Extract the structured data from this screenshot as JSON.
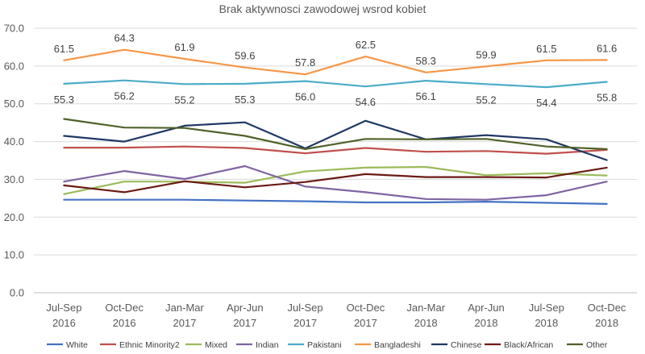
{
  "chart_data": {
    "type": "line",
    "title": "Brak aktywnosci zawodowej wsrod kobiet",
    "xlabel": "",
    "ylabel": "",
    "ylim": [
      0,
      70
    ],
    "yticks": [
      "0.0",
      "10.0",
      "20.0",
      "30.0",
      "40.0",
      "50.0",
      "60.0",
      "70.0"
    ],
    "grid": true,
    "legend_position": "bottom",
    "categories": [
      [
        "Jul-Sep",
        "2016"
      ],
      [
        "Oct-Dec",
        "2016"
      ],
      [
        "Jan-Mar",
        "2017"
      ],
      [
        "Apr-Jun",
        "2017"
      ],
      [
        "Jul-Sep",
        "2017"
      ],
      [
        "Oct-Dec",
        "2017"
      ],
      [
        "Jan-Mar",
        "2018"
      ],
      [
        "Apr-Jun",
        "2018"
      ],
      [
        "Jul-Sep",
        "2018"
      ],
      [
        "Oct-Dec",
        "2018"
      ]
    ],
    "series": [
      {
        "name": "White",
        "color": "#4472c4",
        "labels": false,
        "values": [
          24.6,
          24.6,
          24.6,
          24.4,
          24.2,
          23.9,
          23.9,
          24.1,
          23.8,
          23.5
        ]
      },
      {
        "name": "Ethnic Minority2",
        "color": "#c0504d",
        "labels": false,
        "values": [
          38.4,
          38.4,
          38.7,
          38.3,
          36.9,
          38.3,
          37.3,
          37.5,
          36.8,
          37.8
        ]
      },
      {
        "name": "Mixed",
        "color": "#9bbb59",
        "labels": false,
        "values": [
          26.1,
          29.4,
          29.4,
          29.1,
          32.1,
          33.1,
          33.3,
          31.1,
          31.6,
          31.0
        ]
      },
      {
        "name": "Indian",
        "color": "#8064a2",
        "labels": false,
        "values": [
          29.4,
          32.2,
          30.1,
          33.5,
          28.1,
          26.6,
          24.8,
          24.6,
          25.8,
          29.4
        ]
      },
      {
        "name": "Pakistani",
        "color": "#4bacc6",
        "labels": true,
        "values": [
          55.3,
          56.2,
          55.2,
          55.3,
          56.0,
          54.6,
          56.1,
          55.2,
          54.4,
          55.8
        ]
      },
      {
        "name": "Bangladeshi",
        "color": "#f79646",
        "labels": true,
        "values": [
          61.5,
          64.3,
          61.9,
          59.6,
          57.8,
          62.5,
          58.3,
          59.9,
          61.5,
          61.6
        ]
      },
      {
        "name": "Chinese",
        "color": "#1f3864",
        "labels": false,
        "values": [
          41.5,
          40.0,
          44.2,
          45.1,
          38.2,
          45.5,
          40.6,
          41.7,
          40.6,
          35.1
        ]
      },
      {
        "name": "Black/African",
        "color": "#6b1a14",
        "labels": false,
        "values": [
          28.4,
          26.6,
          29.5,
          27.9,
          29.3,
          31.4,
          30.6,
          30.6,
          30.5,
          33.1
        ]
      },
      {
        "name": "Other",
        "color": "#4f6228",
        "labels": false,
        "values": [
          46.0,
          43.7,
          43.6,
          41.5,
          38.0,
          40.7,
          40.6,
          40.7,
          38.7,
          38.0
        ]
      }
    ]
  }
}
